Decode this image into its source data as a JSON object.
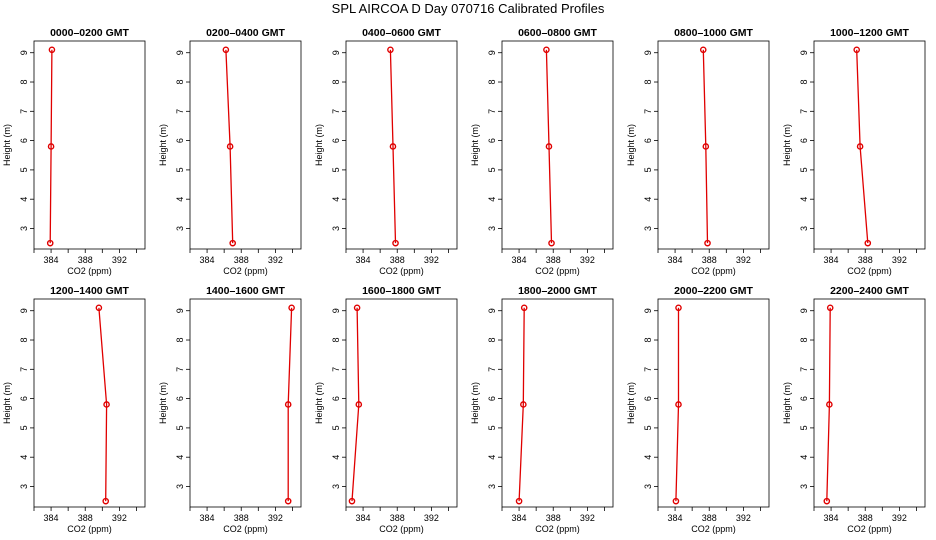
{
  "figure": {
    "title": "SPL AIRCOA D  Day 070716  Calibrated Profiles"
  },
  "colors": {
    "series": "#e00000",
    "axes": "#000000",
    "background": "#ffffff"
  },
  "chart_data": [
    {
      "type": "line",
      "title": "0000–0200 GMT",
      "xlabel": "CO2 (ppm)",
      "ylabel": "Height (m)",
      "xlim": [
        382,
        395
      ],
      "ylim": [
        2.3,
        9.4
      ],
      "xticks": [
        384,
        388,
        392
      ],
      "yticks": [
        3,
        4,
        5,
        6,
        7,
        8,
        9
      ],
      "points": [
        {
          "x": 384.1,
          "y": 9.1
        },
        {
          "x": 384.0,
          "y": 5.8
        },
        {
          "x": 383.9,
          "y": 2.5
        }
      ]
    },
    {
      "type": "line",
      "title": "0200–0400 GMT",
      "xlabel": "CO2 (ppm)",
      "ylabel": "Height (m)",
      "xlim": [
        382,
        395
      ],
      "ylim": [
        2.3,
        9.4
      ],
      "xticks": [
        384,
        388,
        392
      ],
      "yticks": [
        3,
        4,
        5,
        6,
        7,
        8,
        9
      ],
      "points": [
        {
          "x": 386.2,
          "y": 9.1
        },
        {
          "x": 386.7,
          "y": 5.8
        },
        {
          "x": 387.0,
          "y": 2.5
        }
      ]
    },
    {
      "type": "line",
      "title": "0400–0600 GMT",
      "xlabel": "CO2 (ppm)",
      "ylabel": "Height (m)",
      "xlim": [
        382,
        395
      ],
      "ylim": [
        2.3,
        9.4
      ],
      "xticks": [
        384,
        388,
        392
      ],
      "yticks": [
        3,
        4,
        5,
        6,
        7,
        8,
        9
      ],
      "points": [
        {
          "x": 387.2,
          "y": 9.1
        },
        {
          "x": 387.5,
          "y": 5.8
        },
        {
          "x": 387.8,
          "y": 2.5
        }
      ]
    },
    {
      "type": "line",
      "title": "0600–0800 GMT",
      "xlabel": "CO2 (ppm)",
      "ylabel": "Height (m)",
      "xlim": [
        382,
        395
      ],
      "ylim": [
        2.3,
        9.4
      ],
      "xticks": [
        384,
        388,
        392
      ],
      "yticks": [
        3,
        4,
        5,
        6,
        7,
        8,
        9
      ],
      "points": [
        {
          "x": 387.2,
          "y": 9.1
        },
        {
          "x": 387.5,
          "y": 5.8
        },
        {
          "x": 387.8,
          "y": 2.5
        }
      ]
    },
    {
      "type": "line",
      "title": "0800–1000 GMT",
      "xlabel": "CO2 (ppm)",
      "ylabel": "Height (m)",
      "xlim": [
        382,
        395
      ],
      "ylim": [
        2.3,
        9.4
      ],
      "xticks": [
        384,
        388,
        392
      ],
      "yticks": [
        3,
        4,
        5,
        6,
        7,
        8,
        9
      ],
      "points": [
        {
          "x": 387.3,
          "y": 9.1
        },
        {
          "x": 387.6,
          "y": 5.8
        },
        {
          "x": 387.8,
          "y": 2.5
        }
      ]
    },
    {
      "type": "line",
      "title": "1000–1200 GMT",
      "xlabel": "CO2 (ppm)",
      "ylabel": "Height (m)",
      "xlim": [
        382,
        395
      ],
      "ylim": [
        2.3,
        9.4
      ],
      "xticks": [
        384,
        388,
        392
      ],
      "yticks": [
        3,
        4,
        5,
        6,
        7,
        8,
        9
      ],
      "points": [
        {
          "x": 387.0,
          "y": 9.1
        },
        {
          "x": 387.4,
          "y": 5.8
        },
        {
          "x": 388.3,
          "y": 2.5
        }
      ]
    },
    {
      "type": "line",
      "title": "1200–1400 GMT",
      "xlabel": "CO2 (ppm)",
      "ylabel": "Height (m)",
      "xlim": [
        382,
        395
      ],
      "ylim": [
        2.3,
        9.4
      ],
      "xticks": [
        384,
        388,
        392
      ],
      "yticks": [
        3,
        4,
        5,
        6,
        7,
        8,
        9
      ],
      "points": [
        {
          "x": 389.6,
          "y": 9.1
        },
        {
          "x": 390.5,
          "y": 5.8
        },
        {
          "x": 390.4,
          "y": 2.5
        }
      ]
    },
    {
      "type": "line",
      "title": "1400–1600 GMT",
      "xlabel": "CO2 (ppm)",
      "ylabel": "Height (m)",
      "xlim": [
        382,
        395
      ],
      "ylim": [
        2.3,
        9.4
      ],
      "xticks": [
        384,
        388,
        392
      ],
      "yticks": [
        3,
        4,
        5,
        6,
        7,
        8,
        9
      ],
      "points": [
        {
          "x": 393.9,
          "y": 9.1
        },
        {
          "x": 393.5,
          "y": 5.8
        },
        {
          "x": 393.5,
          "y": 2.5
        }
      ]
    },
    {
      "type": "line",
      "title": "1600–1800 GMT",
      "xlabel": "CO2 (ppm)",
      "ylabel": "Height (m)",
      "xlim": [
        382,
        395
      ],
      "ylim": [
        2.3,
        9.4
      ],
      "xticks": [
        384,
        388,
        392
      ],
      "yticks": [
        3,
        4,
        5,
        6,
        7,
        8,
        9
      ],
      "points": [
        {
          "x": 383.3,
          "y": 9.1
        },
        {
          "x": 383.5,
          "y": 5.8
        },
        {
          "x": 382.7,
          "y": 2.5
        }
      ]
    },
    {
      "type": "line",
      "title": "1800–2000 GMT",
      "xlabel": "CO2 (ppm)",
      "ylabel": "Height (m)",
      "xlim": [
        382,
        395
      ],
      "ylim": [
        2.3,
        9.4
      ],
      "xticks": [
        384,
        388,
        392
      ],
      "yticks": [
        3,
        4,
        5,
        6,
        7,
        8,
        9
      ],
      "points": [
        {
          "x": 384.6,
          "y": 9.1
        },
        {
          "x": 384.5,
          "y": 5.8
        },
        {
          "x": 384.0,
          "y": 2.5
        }
      ]
    },
    {
      "type": "line",
      "title": "2000–2200 GMT",
      "xlabel": "CO2 (ppm)",
      "ylabel": "Height (m)",
      "xlim": [
        382,
        395
      ],
      "ylim": [
        2.3,
        9.4
      ],
      "xticks": [
        384,
        388,
        392
      ],
      "yticks": [
        3,
        4,
        5,
        6,
        7,
        8,
        9
      ],
      "points": [
        {
          "x": 384.4,
          "y": 9.1
        },
        {
          "x": 384.4,
          "y": 5.8
        },
        {
          "x": 384.1,
          "y": 2.5
        }
      ]
    },
    {
      "type": "line",
      "title": "2200–2400 GMT",
      "xlabel": "CO2 (ppm)",
      "ylabel": "Height (m)",
      "xlim": [
        382,
        395
      ],
      "ylim": [
        2.3,
        9.4
      ],
      "xticks": [
        384,
        388,
        392
      ],
      "yticks": [
        3,
        4,
        5,
        6,
        7,
        8,
        9
      ],
      "points": [
        {
          "x": 383.9,
          "y": 9.1
        },
        {
          "x": 383.8,
          "y": 5.8
        },
        {
          "x": 383.5,
          "y": 2.5
        }
      ]
    }
  ]
}
